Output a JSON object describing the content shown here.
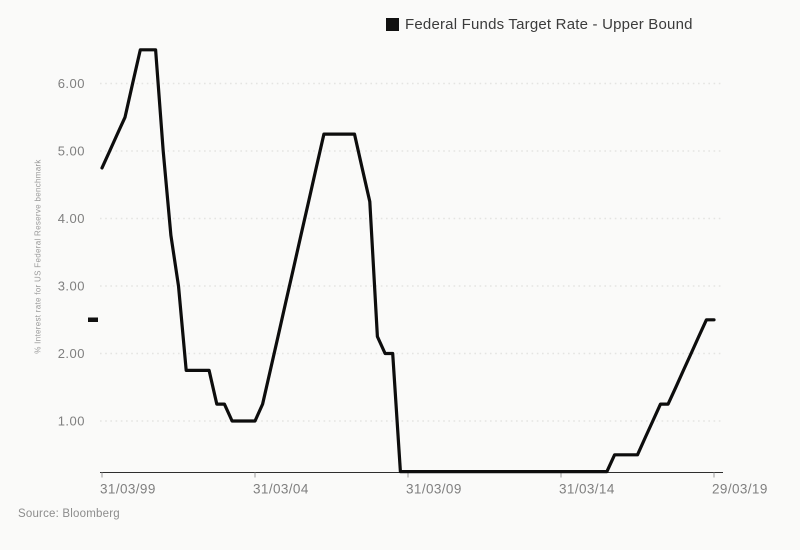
{
  "legend": {
    "label": "Federal Funds Target Rate - Upper Bound",
    "marker_color": "#111111"
  },
  "source": {
    "text": "Source: Bloomberg"
  },
  "chart_data": {
    "type": "line",
    "title": "",
    "xlabel": "",
    "ylabel": "% Interest rate for US Federal Reserve benchmark",
    "ylim": [
      0.25,
      6.6
    ],
    "grid": "horizontal-dotted",
    "legend_position": "top",
    "y_ticks": [
      {
        "label": "1.00",
        "value": 1.0
      },
      {
        "label": "2.00",
        "value": 2.0
      },
      {
        "label": "3.00",
        "value": 3.0
      },
      {
        "label": "4.00",
        "value": 4.0
      },
      {
        "label": "5.00",
        "value": 5.0
      },
      {
        "label": "6.00",
        "value": 6.0
      }
    ],
    "x_ticks": [
      {
        "label": "31/03/99",
        "index": 0
      },
      {
        "label": "31/03/04",
        "index": 20
      },
      {
        "label": "31/03/09",
        "index": 40
      },
      {
        "label": "31/03/14",
        "index": 60
      },
      {
        "label": "29/03/19",
        "index": 80
      }
    ],
    "latest_value_marker": 2.5,
    "series": [
      {
        "name": "Federal Funds Target Rate - Upper Bound",
        "color": "#0d0d0d",
        "dates": [
          "31/03/99",
          "30/06/99",
          "30/09/99",
          "31/12/99",
          "31/03/00",
          "30/06/00",
          "30/09/00",
          "31/12/00",
          "31/03/01",
          "30/06/01",
          "30/09/01",
          "31/12/01",
          "31/03/02",
          "30/06/02",
          "30/09/02",
          "31/12/02",
          "31/03/03",
          "30/06/03",
          "30/09/03",
          "31/12/03",
          "31/03/04",
          "30/06/04",
          "30/09/04",
          "31/12/04",
          "31/03/05",
          "30/06/05",
          "30/09/05",
          "31/12/05",
          "31/03/06",
          "30/06/06",
          "30/09/06",
          "31/12/06",
          "31/03/07",
          "30/06/07",
          "30/09/07",
          "31/12/07",
          "31/03/08",
          "30/06/08",
          "30/09/08",
          "31/12/08",
          "31/03/09",
          "30/06/09",
          "30/09/09",
          "31/12/09",
          "31/03/10",
          "30/06/10",
          "30/09/10",
          "31/12/10",
          "31/03/11",
          "30/06/11",
          "30/09/11",
          "31/12/11",
          "31/03/12",
          "30/06/12",
          "30/09/12",
          "31/12/12",
          "31/03/13",
          "30/06/13",
          "30/09/13",
          "31/12/13",
          "31/03/14",
          "30/06/14",
          "30/09/14",
          "31/12/14",
          "31/03/15",
          "30/06/15",
          "30/09/15",
          "31/12/15",
          "31/03/16",
          "30/06/16",
          "30/09/16",
          "31/12/16",
          "31/03/17",
          "30/06/17",
          "30/09/17",
          "31/12/17",
          "31/03/18",
          "30/06/18",
          "30/09/18",
          "31/12/18",
          "29/03/19"
        ],
        "values": [
          4.75,
          5.0,
          5.25,
          5.5,
          6.0,
          6.5,
          6.5,
          6.5,
          5.0,
          3.75,
          3.0,
          1.75,
          1.75,
          1.75,
          1.75,
          1.25,
          1.25,
          1.0,
          1.0,
          1.0,
          1.0,
          1.25,
          1.75,
          2.25,
          2.75,
          3.25,
          3.75,
          4.25,
          4.75,
          5.25,
          5.25,
          5.25,
          5.25,
          5.25,
          4.75,
          4.25,
          2.25,
          2.0,
          2.0,
          0.25,
          0.25,
          0.25,
          0.25,
          0.25,
          0.25,
          0.25,
          0.25,
          0.25,
          0.25,
          0.25,
          0.25,
          0.25,
          0.25,
          0.25,
          0.25,
          0.25,
          0.25,
          0.25,
          0.25,
          0.25,
          0.25,
          0.25,
          0.25,
          0.25,
          0.25,
          0.25,
          0.25,
          0.5,
          0.5,
          0.5,
          0.5,
          0.75,
          1.0,
          1.25,
          1.25,
          1.5,
          1.75,
          2.0,
          2.25,
          2.5,
          2.5
        ]
      }
    ]
  }
}
